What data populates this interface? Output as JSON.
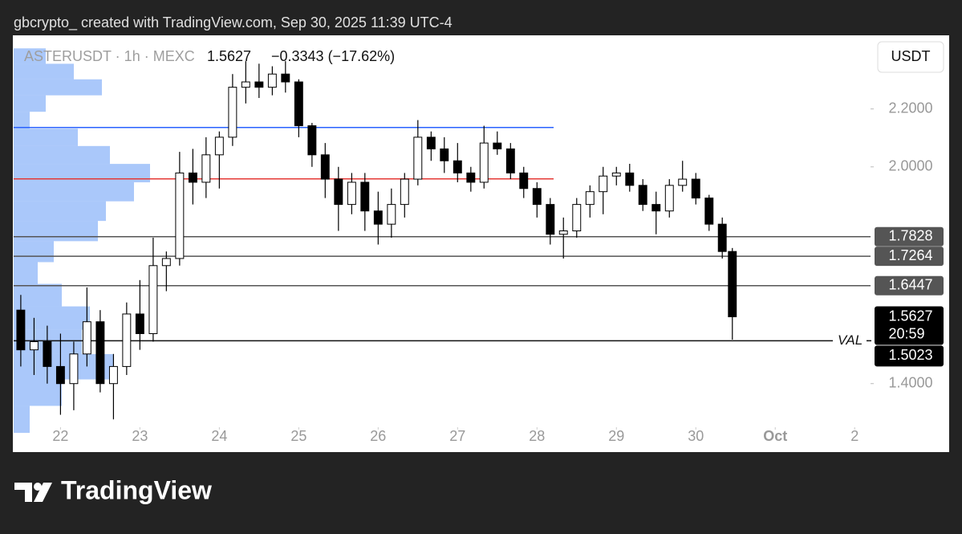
{
  "header": {
    "caption": "gbcrypto_ created with TradingView.com, Sep 30, 2025 11:39 UTC-4"
  },
  "chart_data": {
    "type": "candlestick",
    "symbol": "ASTERUSDT · 1h · MEXC",
    "last_price": 1.5627,
    "change": "−0.3343 (−17.62%)",
    "currency": "USDT",
    "countdown": "20:59",
    "log_scale": true,
    "up_color": "#ffffff",
    "down_color": "#000000",
    "x": [
      21.5,
      21.667,
      21.833,
      22.0,
      22.167,
      22.333,
      22.5,
      22.667,
      22.833,
      23.0,
      23.167,
      23.333,
      23.5,
      23.667,
      23.833,
      24.0,
      24.167,
      24.333,
      24.5,
      24.667,
      24.833,
      25.0,
      25.167,
      25.333,
      25.5,
      25.667,
      25.833,
      26.0,
      26.167,
      26.333,
      26.5,
      26.667,
      26.833,
      27.0,
      27.167,
      27.333,
      27.5,
      27.667,
      27.833,
      28.0,
      28.167,
      28.333,
      28.5,
      28.667,
      28.833,
      29.0,
      29.167,
      29.333,
      29.5,
      29.667,
      29.833,
      30.0,
      30.167,
      30.333,
      30.46
    ],
    "open": [
      1.58,
      1.48,
      1.5,
      1.44,
      1.4,
      1.47,
      1.55,
      1.4,
      1.44,
      1.57,
      1.52,
      1.7,
      1.72,
      1.98,
      1.95,
      2.04,
      2.1,
      2.28,
      2.3,
      2.28,
      2.33,
      2.3,
      2.14,
      2.04,
      1.96,
      1.88,
      1.95,
      1.86,
      1.82,
      1.88,
      1.96,
      2.1,
      2.06,
      2.02,
      1.98,
      1.95,
      2.08,
      2.06,
      1.98,
      1.93,
      1.88,
      1.79,
      1.8,
      1.88,
      1.92,
      1.97,
      1.98,
      1.94,
      1.88,
      1.86,
      1.94,
      1.96,
      1.9,
      1.82,
      1.74
    ],
    "high": [
      1.62,
      1.56,
      1.54,
      1.52,
      1.5,
      1.64,
      1.58,
      1.47,
      1.6,
      1.66,
      1.78,
      1.74,
      2.05,
      2.06,
      2.1,
      2.12,
      2.33,
      2.38,
      2.37,
      2.36,
      2.38,
      2.31,
      2.15,
      2.08,
      2.0,
      1.98,
      1.98,
      1.92,
      1.93,
      1.98,
      2.16,
      2.12,
      2.1,
      2.08,
      2.0,
      2.14,
      2.12,
      2.08,
      2.0,
      1.95,
      1.9,
      1.84,
      1.9,
      1.94,
      2.0,
      2.0,
      2.01,
      1.96,
      1.92,
      1.96,
      2.02,
      1.98,
      1.91,
      1.84,
      1.75
    ],
    "low": [
      1.44,
      1.42,
      1.4,
      1.33,
      1.34,
      1.44,
      1.38,
      1.32,
      1.42,
      1.48,
      1.5,
      1.63,
      1.7,
      1.88,
      1.9,
      1.93,
      2.07,
      2.22,
      2.24,
      2.25,
      2.26,
      2.1,
      2.0,
      1.9,
      1.8,
      1.85,
      1.8,
      1.76,
      1.78,
      1.84,
      1.94,
      2.02,
      1.98,
      1.95,
      1.92,
      1.93,
      2.04,
      1.96,
      1.9,
      1.84,
      1.76,
      1.72,
      1.78,
      1.84,
      1.85,
      1.94,
      1.92,
      1.86,
      1.79,
      1.84,
      1.92,
      1.88,
      1.8,
      1.72,
      1.505
    ],
    "close": [
      1.48,
      1.5,
      1.44,
      1.4,
      1.47,
      1.55,
      1.4,
      1.44,
      1.57,
      1.52,
      1.7,
      1.72,
      1.98,
      1.95,
      2.04,
      2.1,
      2.28,
      2.3,
      2.28,
      2.33,
      2.3,
      2.14,
      2.04,
      1.96,
      1.88,
      1.95,
      1.86,
      1.82,
      1.88,
      1.96,
      2.1,
      2.06,
      2.02,
      1.98,
      1.95,
      2.08,
      2.06,
      1.98,
      1.93,
      1.88,
      1.79,
      1.8,
      1.88,
      1.92,
      1.97,
      1.98,
      1.94,
      1.88,
      1.86,
      1.94,
      1.96,
      1.9,
      1.82,
      1.74,
      1.5627
    ],
    "xlim": [
      21.41,
      32.2
    ],
    "xticks": [
      22,
      23,
      24,
      25,
      26,
      27,
      28,
      29,
      30,
      {
        "value": 31,
        "label": "Oct"
      },
      {
        "value": 32,
        "label": "2"
      }
    ],
    "ylim": [
      1.31,
      2.48
    ],
    "yticks": [
      {
        "value": 1.4,
        "label": "1.4000"
      },
      {
        "value": 2.0,
        "label": "2.0000"
      },
      {
        "value": 2.2,
        "label": "2.2000"
      }
    ],
    "levels": [
      1.7828,
      1.7264,
      1.6447
    ],
    "level_color": "#555555",
    "val_level": {
      "label": "VAL",
      "value": 1.5023
    },
    "blue_line": {
      "value": 2.134,
      "color": "#2962ff"
    },
    "red_line": {
      "value": 1.961,
      "color": "#e53935"
    },
    "volume_profile": {
      "color": "rgba(66,133,244,0.45)",
      "prices": [
        2.4,
        2.34,
        2.28,
        2.22,
        2.16,
        2.1,
        2.04,
        1.98,
        1.92,
        1.86,
        1.8,
        1.74,
        1.68,
        1.62,
        1.56,
        1.5,
        1.44,
        1.38,
        1.32
      ],
      "values": [
        40,
        75,
        110,
        40,
        20,
        80,
        120,
        170,
        150,
        115,
        105,
        50,
        30,
        60,
        95,
        85,
        125,
        60,
        20
      ]
    }
  },
  "footer": {
    "brand": "TradingView"
  }
}
